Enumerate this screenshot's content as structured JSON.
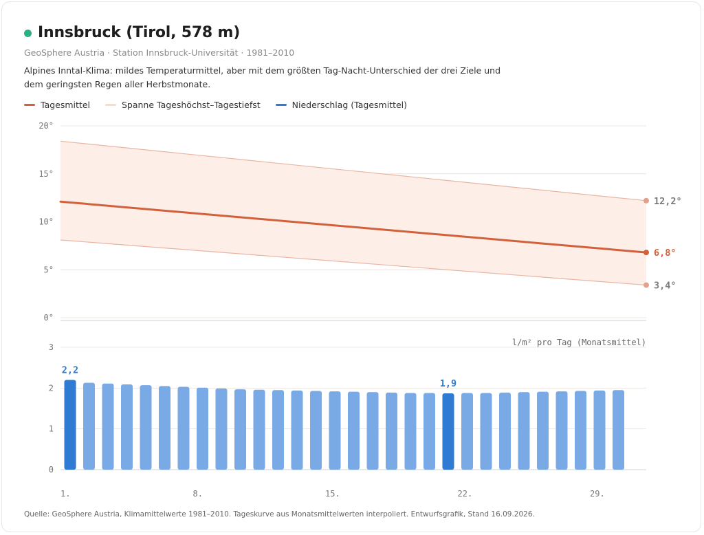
{
  "header": {
    "title": "Innsbruck (Tirol, 578 m)",
    "subtitle": "GeoSphere Austria · Station Innsbruck-Universität · 1981–2010",
    "description": "Alpines Inntal-Klima: mildes Temperaturmittel, aber mit dem größten Tag-Nacht-Unterschied der drei Ziele und dem geringsten Regen aller Herbstmonate."
  },
  "legend": {
    "mean": "Tagesmittel",
    "range": "Spanne Tageshöchst–Tagestiefst",
    "precip": "Niederschlag (Tagesmittel)"
  },
  "footer": {
    "source": "Quelle: GeoSphere Austria, Klimamittelwerte 1981–2010. Tageskurve aus Monatsmittelwerten interpoliert. Entwurfsgrafik, Stand 16.09.2026."
  },
  "colors": {
    "mean": "#d2603a",
    "range_fill": "#fdeee8",
    "range_line": "#e8b5a2",
    "precip": "#7aaae6",
    "precip_highlight": "#2f7ad3",
    "grid": "#ece4de",
    "dot": "#2bb083"
  },
  "chart_data": [
    {
      "type": "line",
      "x_ticks": [
        "1.",
        "8.",
        "15.",
        "22.",
        "29."
      ],
      "y_ticks": [
        "20°",
        "15°",
        "10°",
        "5°",
        "0°"
      ],
      "ylim": [
        0,
        20
      ],
      "xlim": [
        1,
        30
      ],
      "series": [
        {
          "name": "Tagesmittel",
          "x": [
            1,
            30
          ],
          "values": [
            12.1,
            6.8
          ]
        },
        {
          "name": "Tageshöchst",
          "x": [
            1,
            30
          ],
          "values": [
            18.4,
            12.2
          ]
        },
        {
          "name": "Tagestiefst",
          "x": [
            1,
            30
          ],
          "values": [
            8.1,
            3.4
          ]
        }
      ],
      "end_labels": {
        "max": "12,2°",
        "mean": "6,8°",
        "min": "3,4°"
      }
    },
    {
      "type": "bar",
      "unit_label": "l/m² pro Tag (Monatsmittel)",
      "y_ticks": [
        "3",
        "2",
        "1",
        "0"
      ],
      "ylim": [
        0,
        3
      ],
      "days": [
        1,
        2,
        3,
        4,
        5,
        6,
        7,
        8,
        9,
        10,
        11,
        12,
        13,
        14,
        15,
        16,
        17,
        18,
        19,
        20,
        21,
        22,
        23,
        24,
        25,
        26,
        27,
        28,
        29,
        30
      ],
      "values": [
        2.2,
        2.13,
        2.11,
        2.09,
        2.07,
        2.05,
        2.03,
        2.01,
        1.99,
        1.97,
        1.96,
        1.95,
        1.94,
        1.93,
        1.92,
        1.91,
        1.9,
        1.89,
        1.88,
        1.88,
        1.87,
        1.88,
        1.88,
        1.89,
        1.9,
        1.91,
        1.92,
        1.93,
        1.94,
        1.95
      ],
      "highlight_days": [
        1,
        21
      ],
      "bar_labels": [
        {
          "day": 1,
          "text": "2,2"
        },
        {
          "day": 21,
          "text": "1,9"
        }
      ]
    }
  ]
}
